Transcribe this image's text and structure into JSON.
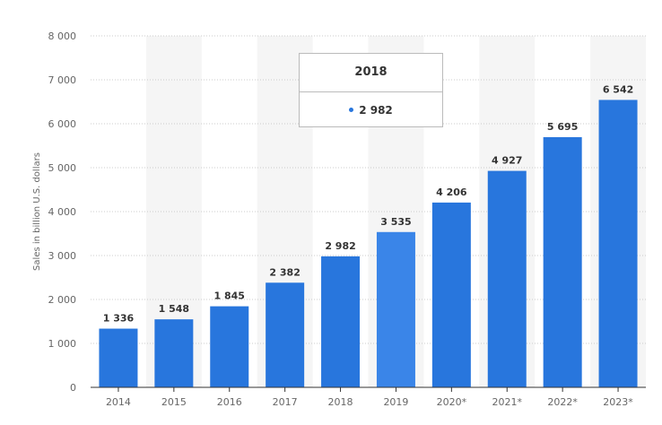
{
  "chart_data": {
    "type": "bar",
    "categories": [
      "2014",
      "2015",
      "2016",
      "2017",
      "2018",
      "2019",
      "2020*",
      "2021*",
      "2022*",
      "2023*"
    ],
    "values": [
      1336,
      1548,
      1845,
      2382,
      2982,
      3535,
      4206,
      4927,
      5695,
      6542
    ],
    "value_labels": [
      "1 336",
      "1 548",
      "1 845",
      "2 382",
      "2 982",
      "3 535",
      "4 206",
      "4 927",
      "5 695",
      "6 542"
    ],
    "title": "",
    "xlabel": "",
    "ylabel": "Sales in billion U.S. dollars",
    "ylim": [
      0,
      8000
    ],
    "yticks": [
      0,
      1000,
      2000,
      3000,
      4000,
      5000,
      6000,
      7000,
      8000
    ],
    "ytick_labels": [
      "0",
      "1 000",
      "2 000",
      "3 000",
      "4 000",
      "5 000",
      "6 000",
      "7 000",
      "8 000"
    ],
    "grid": true,
    "highlighted_category": "2019",
    "colors": {
      "bar": "#2876dd",
      "bar_highlight": "#3a85e8",
      "grid": "#cccccc",
      "band": "#f5f5f5"
    }
  },
  "tooltip": {
    "title": "2018",
    "value": "2 982"
  }
}
